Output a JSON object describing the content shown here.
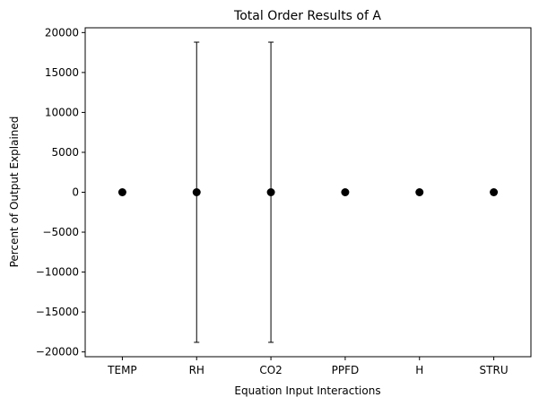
{
  "chart_data": {
    "type": "scatter",
    "title": "Total Order Results of A",
    "xlabel": "Equation Input Interactions",
    "ylabel": "Percent of Output Explained",
    "categories": [
      "TEMP",
      "RH",
      "CO2",
      "PPFD",
      "H",
      "STRU"
    ],
    "series": [
      {
        "values": [
          0,
          0,
          0,
          0,
          0,
          0
        ],
        "error": [
          0,
          18800,
          18800,
          0,
          0,
          0
        ]
      }
    ],
    "ylim": [
      -20600,
      20600
    ],
    "yticks": [
      -20000,
      -15000,
      -10000,
      -5000,
      0,
      5000,
      10000,
      15000,
      20000
    ],
    "ytick_labels": [
      "−20000",
      "−15000",
      "−10000",
      "−5000",
      "0",
      "5000",
      "10000",
      "15000",
      "20000"
    ],
    "grid": false,
    "marker_color": "#000000"
  }
}
